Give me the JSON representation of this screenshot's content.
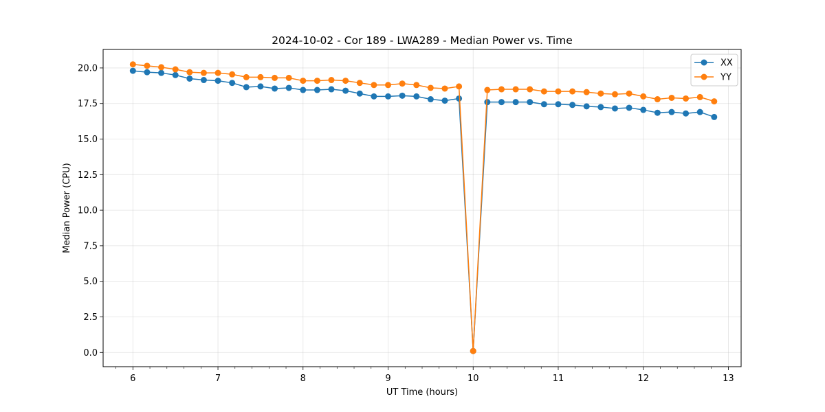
{
  "chart_data": {
    "type": "line",
    "title": "2024-10-02 - Cor 189 - LWA289 - Median Power vs. Time",
    "xlabel": "UT Time (hours)",
    "ylabel": "Median Power (CPU)",
    "xlim": [
      5.65,
      13.15
    ],
    "ylim": [
      -1.0,
      21.3
    ],
    "xticks": [
      6,
      7,
      8,
      9,
      10,
      11,
      12,
      13
    ],
    "xtick_labels": [
      "6",
      "7",
      "8",
      "9",
      "10",
      "11",
      "12",
      "13"
    ],
    "x_minor_step": 0.2,
    "yticks": [
      0,
      2.5,
      5,
      7.5,
      10,
      12.5,
      15,
      17.5,
      20
    ],
    "ytick_labels": [
      "0.0",
      "2.5",
      "5.0",
      "7.5",
      "10.0",
      "12.5",
      "15.0",
      "17.5",
      "20.0"
    ],
    "grid": true,
    "legend_position": "top-right",
    "x": [
      6.0,
      6.1667,
      6.3333,
      6.5,
      6.6667,
      6.8333,
      7.0,
      7.1667,
      7.3333,
      7.5,
      7.6667,
      7.8333,
      8.0,
      8.1667,
      8.3333,
      8.5,
      8.6667,
      8.8333,
      9.0,
      9.1667,
      9.3333,
      9.5,
      9.6667,
      9.8333,
      10.0,
      10.1667,
      10.3333,
      10.5,
      10.6667,
      10.8333,
      11.0,
      11.1667,
      11.3333,
      11.5,
      11.6667,
      11.8333,
      12.0,
      12.1667,
      12.3333,
      12.5,
      12.6667,
      12.8333
    ],
    "series": [
      {
        "name": "XX",
        "color": "#1f77b4",
        "values": [
          19.8,
          19.7,
          19.65,
          19.5,
          19.25,
          19.15,
          19.1,
          18.95,
          18.65,
          18.7,
          18.55,
          18.6,
          18.45,
          18.45,
          18.5,
          18.4,
          18.2,
          18.0,
          18.0,
          18.05,
          18.0,
          17.8,
          17.7,
          17.85,
          0.1,
          17.6,
          17.6,
          17.6,
          17.6,
          17.45,
          17.45,
          17.4,
          17.3,
          17.25,
          17.15,
          17.2,
          17.05,
          16.85,
          16.9,
          16.8,
          16.9,
          16.55
        ]
      },
      {
        "name": "YY",
        "color": "#ff7f0e",
        "values": [
          20.25,
          20.15,
          20.05,
          19.9,
          19.7,
          19.65,
          19.65,
          19.55,
          19.35,
          19.35,
          19.3,
          19.3,
          19.1,
          19.1,
          19.15,
          19.1,
          18.95,
          18.8,
          18.8,
          18.9,
          18.8,
          18.6,
          18.55,
          18.7,
          0.1,
          18.45,
          18.5,
          18.5,
          18.5,
          18.35,
          18.35,
          18.35,
          18.3,
          18.2,
          18.15,
          18.2,
          18.0,
          17.8,
          17.9,
          17.85,
          17.95,
          17.65
        ]
      }
    ]
  }
}
